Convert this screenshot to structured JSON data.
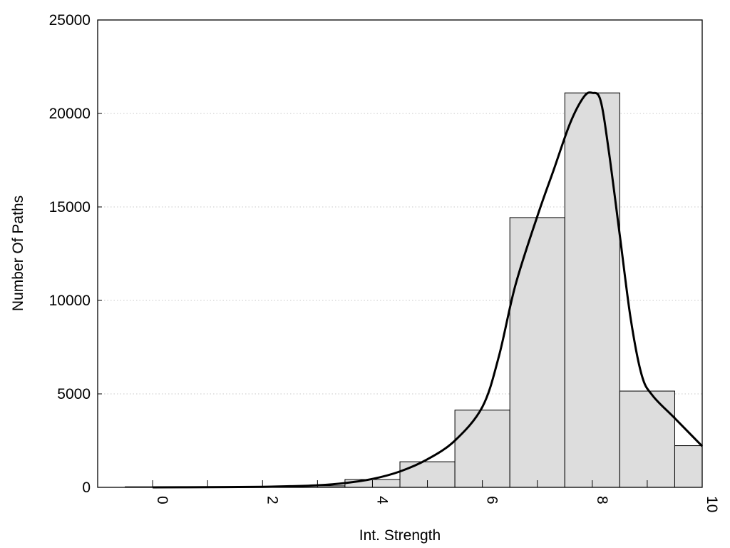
{
  "chart_data": {
    "type": "bar",
    "title": "",
    "xlabel": "Int. Strength",
    "ylabel": "Number Of Paths",
    "xlim": [
      -1,
      10
    ],
    "ylim": [
      0,
      25000
    ],
    "x_ticks": [
      "0",
      "2",
      "4",
      "6",
      "8",
      "10"
    ],
    "y_ticks": [
      "0",
      "5000",
      "10000",
      "15000",
      "20000",
      "25000"
    ],
    "grid": "horizontal dotted",
    "bar_width": 1,
    "bar_color": "#dddddd",
    "series": [
      {
        "type": "bar",
        "x": [
          0,
          1,
          2,
          3,
          4,
          5,
          6,
          7,
          8,
          9,
          10
        ],
        "values": [
          0,
          5,
          20,
          80,
          420,
          1370,
          4130,
          14430,
          21100,
          5150,
          2230
        ]
      },
      {
        "type": "line",
        "color": "#000000",
        "x": [
          0,
          1,
          2,
          2.5,
          3,
          3.5,
          4,
          4.5,
          5,
          5.5,
          6,
          6.3,
          6.6,
          7,
          7.3,
          7.6,
          7.85,
          8,
          8.15,
          8.3,
          8.5,
          8.7,
          8.9,
          9.1,
          9.5,
          10
        ],
        "values": [
          0,
          10,
          30,
          60,
          110,
          230,
          450,
          850,
          1500,
          2500,
          4300,
          7000,
          10800,
          14500,
          17000,
          19500,
          20900,
          21100,
          20700,
          18000,
          13500,
          9000,
          6000,
          4900,
          3700,
          2200
        ]
      }
    ]
  }
}
